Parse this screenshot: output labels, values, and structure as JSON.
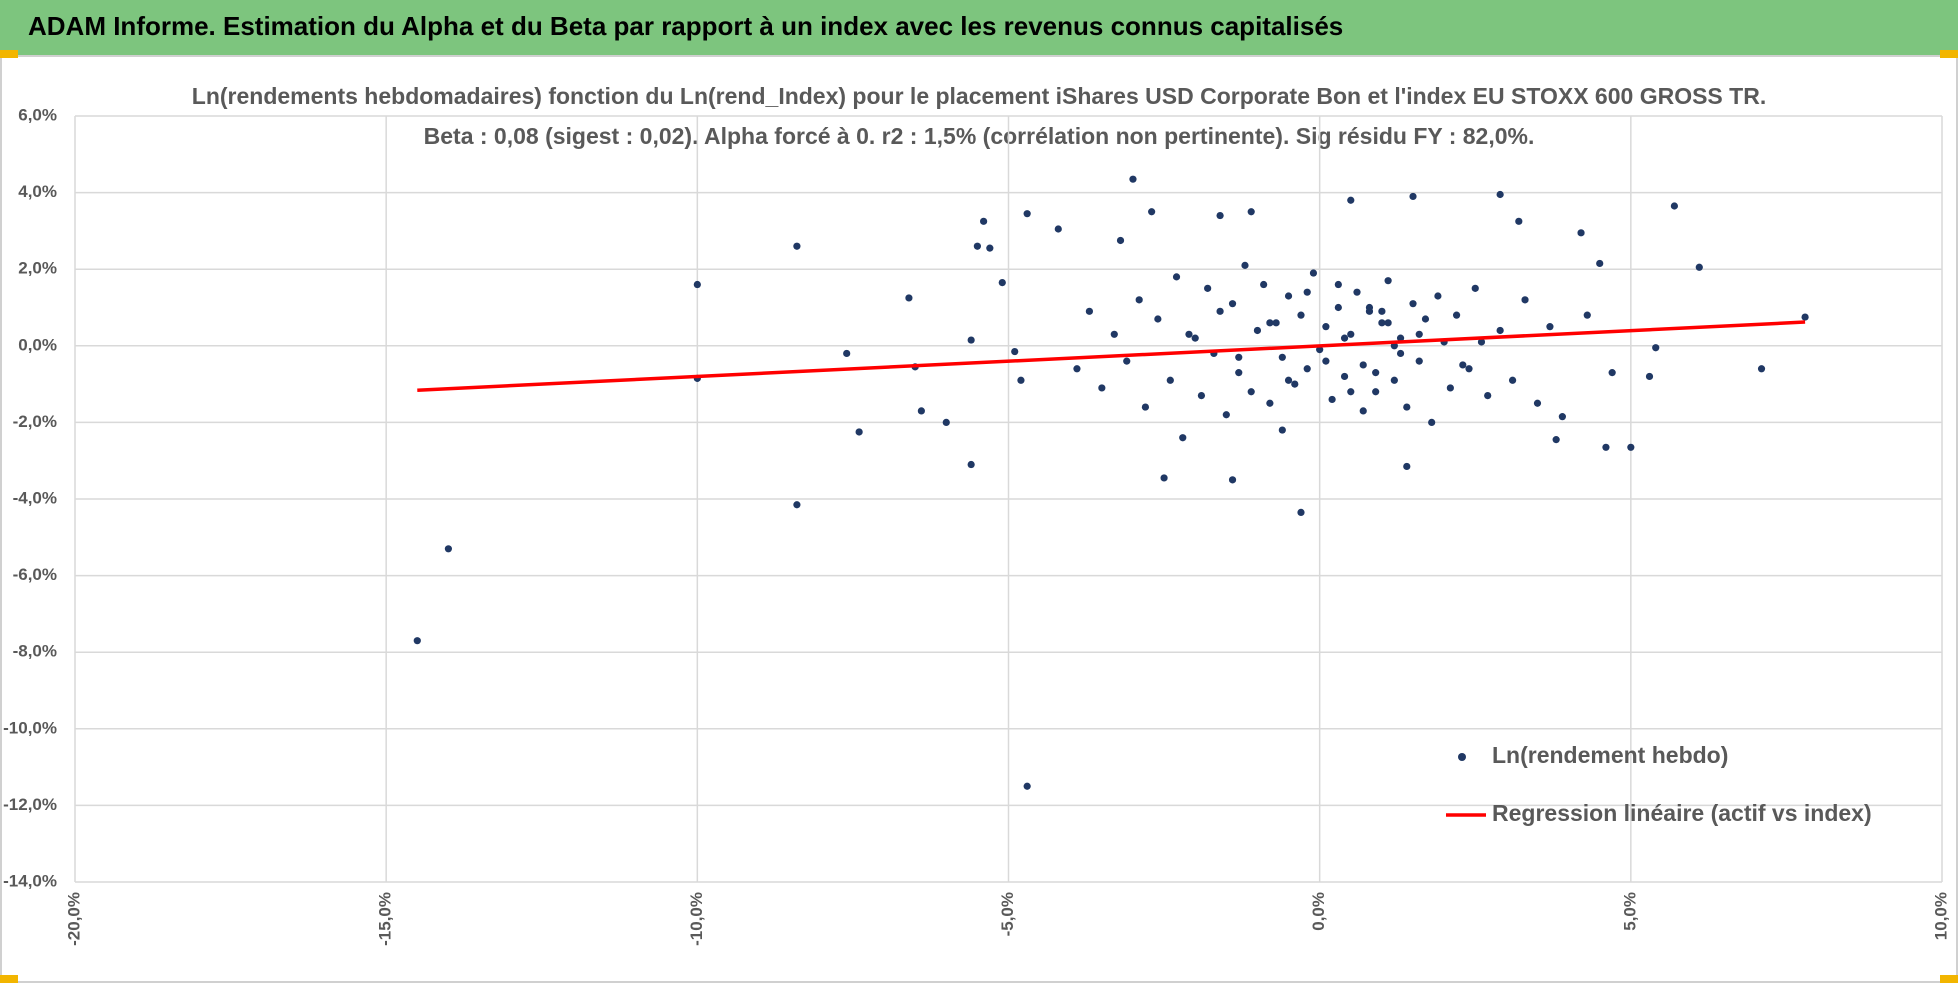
{
  "header": {
    "title": "ADAM Informe. Estimation du Alpha et du Beta par rapport à un index avec les revenus connus capitalisés"
  },
  "chart_data": {
    "type": "scatter",
    "title": "Ln(rendements hebdomadaires) fonction du Ln(rend_Index) pour le placement iShares USD Corporate Bon et l'index EU STOXX 600 GROSS TR.",
    "subtitle": "Beta : 0,08 (sigest : 0,02).  Alpha forcé à 0. r2 : 1,5% (corrélation non pertinente). Sig résidu FY : 82,0%.",
    "xlim": [
      -20,
      10
    ],
    "xticks": [
      {
        "value": -20,
        "label": "-20,0%"
      },
      {
        "value": -15,
        "label": "-15,0%"
      },
      {
        "value": -10,
        "label": "-10,0%"
      },
      {
        "value": -5,
        "label": "-5,0%"
      },
      {
        "value": 0,
        "label": "0,0%"
      },
      {
        "value": 5,
        "label": "5,0%"
      },
      {
        "value": 10,
        "label": "10,0%"
      }
    ],
    "ylim": [
      -14,
      6
    ],
    "yticks": [
      {
        "value": -14,
        "label": "-14,0%"
      },
      {
        "value": -12,
        "label": "-12,0%"
      },
      {
        "value": -10,
        "label": "-10,0%"
      },
      {
        "value": -8,
        "label": "-8,0%"
      },
      {
        "value": -6,
        "label": "-6,0%"
      },
      {
        "value": -4,
        "label": "-4,0%"
      },
      {
        "value": -2,
        "label": "-2,0%"
      },
      {
        "value": 0,
        "label": "0,0%"
      },
      {
        "value": 2,
        "label": "2,0%"
      },
      {
        "value": 4,
        "label": "4,0%"
      },
      {
        "value": 6,
        "label": "6,0%"
      }
    ],
    "grid": true,
    "legend": "lower right",
    "series": [
      {
        "name": "Ln(rendement hebdo)",
        "color": "#203864",
        "type": "scatter",
        "x": [
          -14.5,
          -14,
          -10,
          -10,
          -8.4,
          -8.4,
          -7.6,
          -7.4,
          -6.6,
          -6.5,
          -6.4,
          -6,
          -5.6,
          -5.6,
          -5.5,
          -5.4,
          -5.3,
          -5.1,
          -4.9,
          -4.8,
          -4.7,
          -4.7,
          -4.2,
          -3,
          -3.2,
          -2.7,
          -1.6,
          -1.1,
          -2.5,
          -1.4,
          -0.3,
          1.4,
          0.5,
          1.5,
          2.9,
          3.2,
          4.2,
          4.5,
          5.7,
          6.1,
          7.8,
          7.1,
          5,
          4.6,
          5.3,
          3.8,
          3.9,
          4.3,
          5.4,
          4.7,
          -3.9,
          -3.7,
          -3.5,
          -3.3,
          -3.1,
          -2.9,
          -2.8,
          -2.6,
          -2.4,
          -2.3,
          -2.2,
          -2.0,
          -1.9,
          -1.8,
          -1.7,
          -1.6,
          -1.5,
          -1.4,
          -1.3,
          -1.2,
          -1.1,
          -1.0,
          -0.9,
          -0.8,
          -0.7,
          -0.6,
          -0.5,
          -0.4,
          -0.3,
          -0.2,
          -0.1,
          0.0,
          0.1,
          0.2,
          0.3,
          0.4,
          0.5,
          0.6,
          0.7,
          0.8,
          0.9,
          1.0,
          1.1,
          1.2,
          1.3,
          1.4,
          1.5,
          1.6,
          1.7,
          1.8,
          1.9,
          2.0,
          2.1,
          2.2,
          2.4,
          2.5,
          2.7,
          2.9,
          3.1,
          3.3,
          3.5,
          3.7,
          -0.8,
          -0.5,
          -0.2,
          0.1,
          0.4,
          0.7,
          1.0,
          1.3,
          1.6,
          -0.6,
          0.3,
          0.9,
          1.2,
          -1.3,
          0.5,
          0.8,
          1.1,
          2.3,
          -2.1,
          2.6
        ],
        "values": [
          -7.7,
          -5.3,
          1.6,
          -0.85,
          2.6,
          -4.15,
          -0.2,
          -2.25,
          1.25,
          -0.55,
          -1.7,
          -2,
          -3.1,
          0.15,
          2.6,
          3.25,
          2.55,
          1.65,
          -0.15,
          -0.9,
          3.45,
          -11.5,
          3.05,
          4.35,
          2.75,
          3.5,
          3.4,
          3.5,
          -3.45,
          -3.5,
          -4.35,
          -3.15,
          3.8,
          3.9,
          3.95,
          3.25,
          2.95,
          2.15,
          3.65,
          2.05,
          0.75,
          -0.6,
          -2.65,
          -2.65,
          -0.8,
          -2.45,
          -1.85,
          0.8,
          -0.05,
          -0.7,
          -0.6,
          0.9,
          -1.1,
          0.3,
          -0.4,
          1.2,
          -1.6,
          0.7,
          -0.9,
          1.8,
          -2.4,
          0.2,
          -1.3,
          1.5,
          -0.2,
          0.9,
          -1.8,
          1.1,
          -0.7,
          2.1,
          -1.2,
          0.4,
          1.6,
          -1.5,
          0.6,
          -0.3,
          1.3,
          -1.0,
          0.8,
          -0.6,
          1.9,
          -0.1,
          0.5,
          -1.4,
          1.0,
          -0.8,
          0.3,
          1.4,
          -0.5,
          0.9,
          -1.2,
          0.6,
          1.7,
          -0.9,
          0.2,
          -1.6,
          1.1,
          -0.4,
          0.7,
          -2.0,
          1.3,
          0.1,
          -1.1,
          0.8,
          -0.6,
          1.5,
          -1.3,
          0.4,
          -0.9,
          1.2,
          -1.5,
          0.5,
          0.6,
          -0.9,
          1.4,
          -0.4,
          0.2,
          -1.7,
          0.9,
          -0.2,
          0.3,
          -2.2,
          1.6,
          -0.7,
          0.0,
          -0.3,
          -1.2,
          1.0,
          0.6,
          -0.5,
          0.3,
          0.1
        ]
      },
      {
        "name": "Regression linéaire (actif vs index)",
        "color": "#ff0000",
        "type": "line",
        "x": [
          -14.5,
          7.8
        ],
        "values": [
          -1.16,
          0.62
        ]
      }
    ]
  }
}
